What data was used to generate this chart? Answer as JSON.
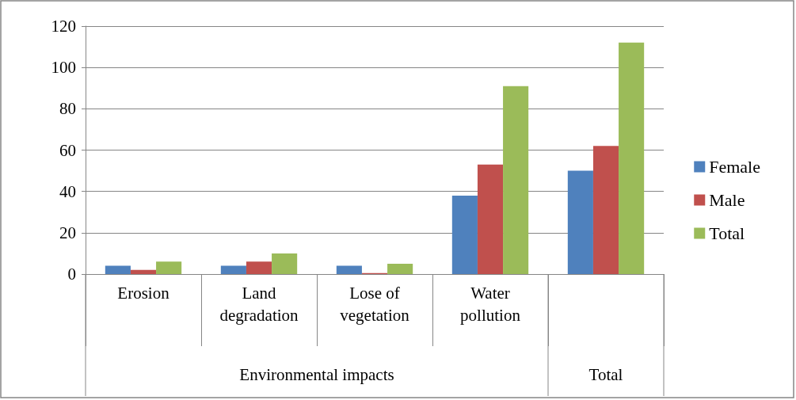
{
  "chart_data": {
    "type": "bar",
    "categories": [
      "Erosion",
      "Land\ndegradation",
      "Lose of\nvegetation",
      "Water\npollution",
      null
    ],
    "series": [
      {
        "name": "Female",
        "color": "#4f81bd",
        "values": [
          4,
          4,
          4,
          38,
          50
        ]
      },
      {
        "name": "Male",
        "color": "#c0504d",
        "values": [
          2,
          6,
          0.5,
          53,
          62
        ]
      },
      {
        "name": "Total",
        "color": "#9bbb59",
        "values": [
          6,
          10,
          5,
          91,
          112
        ]
      }
    ],
    "annotations": [
      "Environmental impacts",
      "Total"
    ],
    "ylim": [
      0,
      120
    ],
    "yticks": [
      0,
      20,
      40,
      60,
      80,
      100,
      120
    ],
    "grid": "y",
    "legend": "right"
  }
}
